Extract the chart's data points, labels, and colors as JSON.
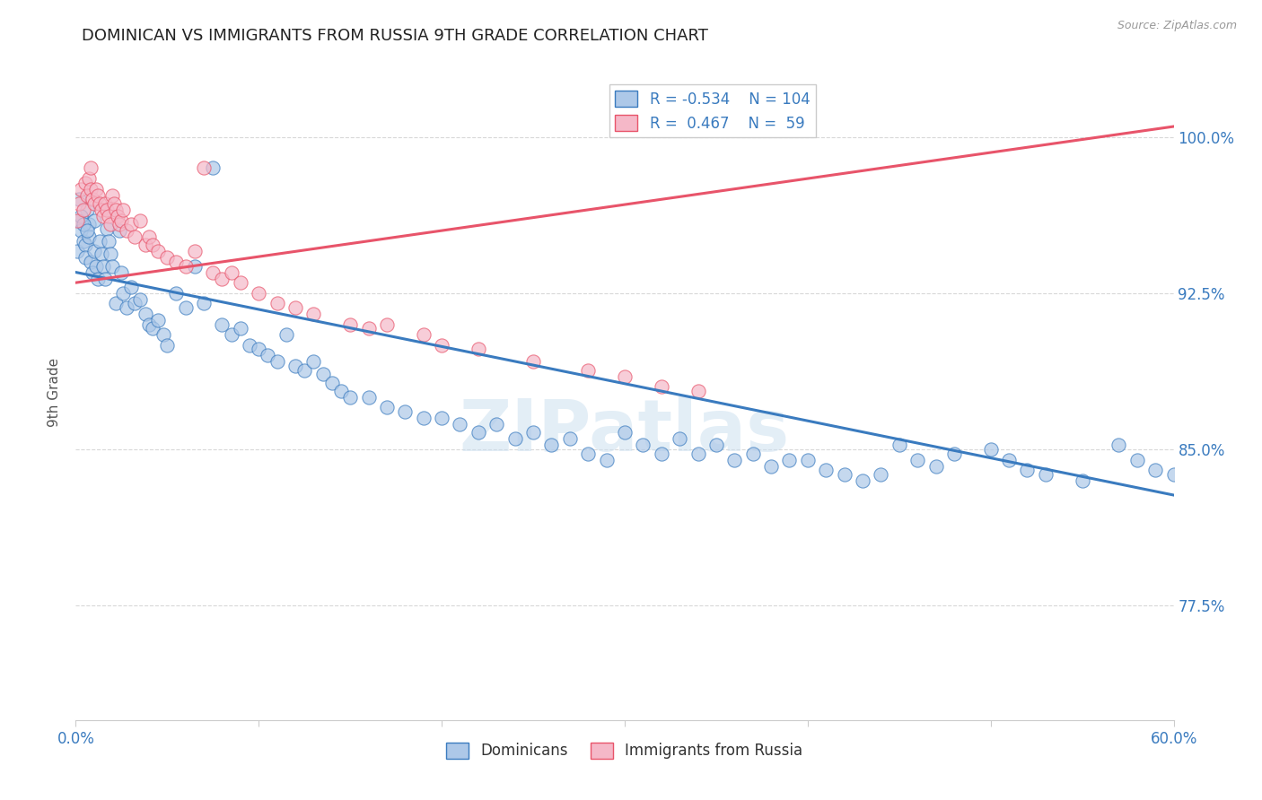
{
  "title": "DOMINICAN VS IMMIGRANTS FROM RUSSIA 9TH GRADE CORRELATION CHART",
  "source": "Source: ZipAtlas.com",
  "ylabel": "9th Grade",
  "ytick_labels": [
    "77.5%",
    "85.0%",
    "92.5%",
    "100.0%"
  ],
  "ytick_values": [
    0.775,
    0.85,
    0.925,
    1.0
  ],
  "xlim": [
    0.0,
    0.6
  ],
  "ylim": [
    0.72,
    1.035
  ],
  "watermark": "ZIPatlas",
  "dominicans_color": "#adc8e8",
  "russia_color": "#f5b8c8",
  "trend_dominicans_color": "#3a7bbf",
  "trend_russia_color": "#e8546a",
  "legend_text_color": "#3a7bbf",
  "dom_trend_x": [
    0.0,
    0.6
  ],
  "dom_trend_y": [
    0.935,
    0.828
  ],
  "rus_trend_x": [
    0.0,
    0.6
  ],
  "rus_trend_y": [
    0.93,
    1.005
  ],
  "background_color": "#ffffff",
  "grid_color": "#d8d8d8",
  "dom_x": [
    0.001,
    0.002,
    0.003,
    0.004,
    0.005,
    0.005,
    0.006,
    0.007,
    0.007,
    0.008,
    0.009,
    0.01,
    0.01,
    0.011,
    0.012,
    0.013,
    0.014,
    0.015,
    0.016,
    0.017,
    0.018,
    0.019,
    0.02,
    0.022,
    0.024,
    0.025,
    0.026,
    0.028,
    0.03,
    0.032,
    0.035,
    0.038,
    0.04,
    0.042,
    0.045,
    0.048,
    0.05,
    0.055,
    0.06,
    0.065,
    0.07,
    0.075,
    0.08,
    0.085,
    0.09,
    0.095,
    0.1,
    0.105,
    0.11,
    0.115,
    0.12,
    0.125,
    0.13,
    0.135,
    0.14,
    0.145,
    0.15,
    0.16,
    0.17,
    0.18,
    0.19,
    0.2,
    0.21,
    0.22,
    0.23,
    0.24,
    0.25,
    0.26,
    0.27,
    0.28,
    0.29,
    0.3,
    0.31,
    0.32,
    0.33,
    0.34,
    0.35,
    0.36,
    0.37,
    0.38,
    0.39,
    0.4,
    0.41,
    0.42,
    0.43,
    0.44,
    0.45,
    0.46,
    0.47,
    0.48,
    0.5,
    0.51,
    0.52,
    0.53,
    0.55,
    0.57,
    0.58,
    0.59,
    0.6,
    0.61,
    0.002,
    0.003,
    0.004,
    0.006
  ],
  "dom_y": [
    0.945,
    0.96,
    0.955,
    0.95,
    0.948,
    0.942,
    0.965,
    0.958,
    0.952,
    0.94,
    0.935,
    0.96,
    0.945,
    0.938,
    0.932,
    0.95,
    0.944,
    0.938,
    0.932,
    0.956,
    0.95,
    0.944,
    0.938,
    0.92,
    0.955,
    0.935,
    0.925,
    0.918,
    0.928,
    0.92,
    0.922,
    0.915,
    0.91,
    0.908,
    0.912,
    0.905,
    0.9,
    0.925,
    0.918,
    0.938,
    0.92,
    0.985,
    0.91,
    0.905,
    0.908,
    0.9,
    0.898,
    0.895,
    0.892,
    0.905,
    0.89,
    0.888,
    0.892,
    0.886,
    0.882,
    0.878,
    0.875,
    0.875,
    0.87,
    0.868,
    0.865,
    0.865,
    0.862,
    0.858,
    0.862,
    0.855,
    0.858,
    0.852,
    0.855,
    0.848,
    0.845,
    0.858,
    0.852,
    0.848,
    0.855,
    0.848,
    0.852,
    0.845,
    0.848,
    0.842,
    0.845,
    0.845,
    0.84,
    0.838,
    0.835,
    0.838,
    0.852,
    0.845,
    0.842,
    0.848,
    0.85,
    0.845,
    0.84,
    0.838,
    0.835,
    0.852,
    0.845,
    0.84,
    0.838,
    0.832,
    0.97,
    0.962,
    0.958,
    0.955
  ],
  "rus_x": [
    0.001,
    0.002,
    0.003,
    0.004,
    0.005,
    0.006,
    0.007,
    0.008,
    0.008,
    0.009,
    0.01,
    0.011,
    0.012,
    0.013,
    0.014,
    0.015,
    0.016,
    0.017,
    0.018,
    0.019,
    0.02,
    0.021,
    0.022,
    0.023,
    0.024,
    0.025,
    0.026,
    0.028,
    0.03,
    0.032,
    0.035,
    0.038,
    0.04,
    0.042,
    0.045,
    0.05,
    0.055,
    0.06,
    0.065,
    0.07,
    0.075,
    0.08,
    0.085,
    0.09,
    0.1,
    0.11,
    0.12,
    0.13,
    0.15,
    0.16,
    0.17,
    0.19,
    0.2,
    0.22,
    0.25,
    0.28,
    0.3,
    0.32,
    0.34
  ],
  "rus_y": [
    0.96,
    0.968,
    0.975,
    0.965,
    0.978,
    0.972,
    0.98,
    0.975,
    0.985,
    0.97,
    0.968,
    0.975,
    0.972,
    0.968,
    0.965,
    0.962,
    0.968,
    0.965,
    0.962,
    0.958,
    0.972,
    0.968,
    0.965,
    0.962,
    0.958,
    0.96,
    0.965,
    0.955,
    0.958,
    0.952,
    0.96,
    0.948,
    0.952,
    0.948,
    0.945,
    0.942,
    0.94,
    0.938,
    0.945,
    0.985,
    0.935,
    0.932,
    0.935,
    0.93,
    0.925,
    0.92,
    0.918,
    0.915,
    0.91,
    0.908,
    0.91,
    0.905,
    0.9,
    0.898,
    0.892,
    0.888,
    0.885,
    0.88,
    0.878
  ]
}
